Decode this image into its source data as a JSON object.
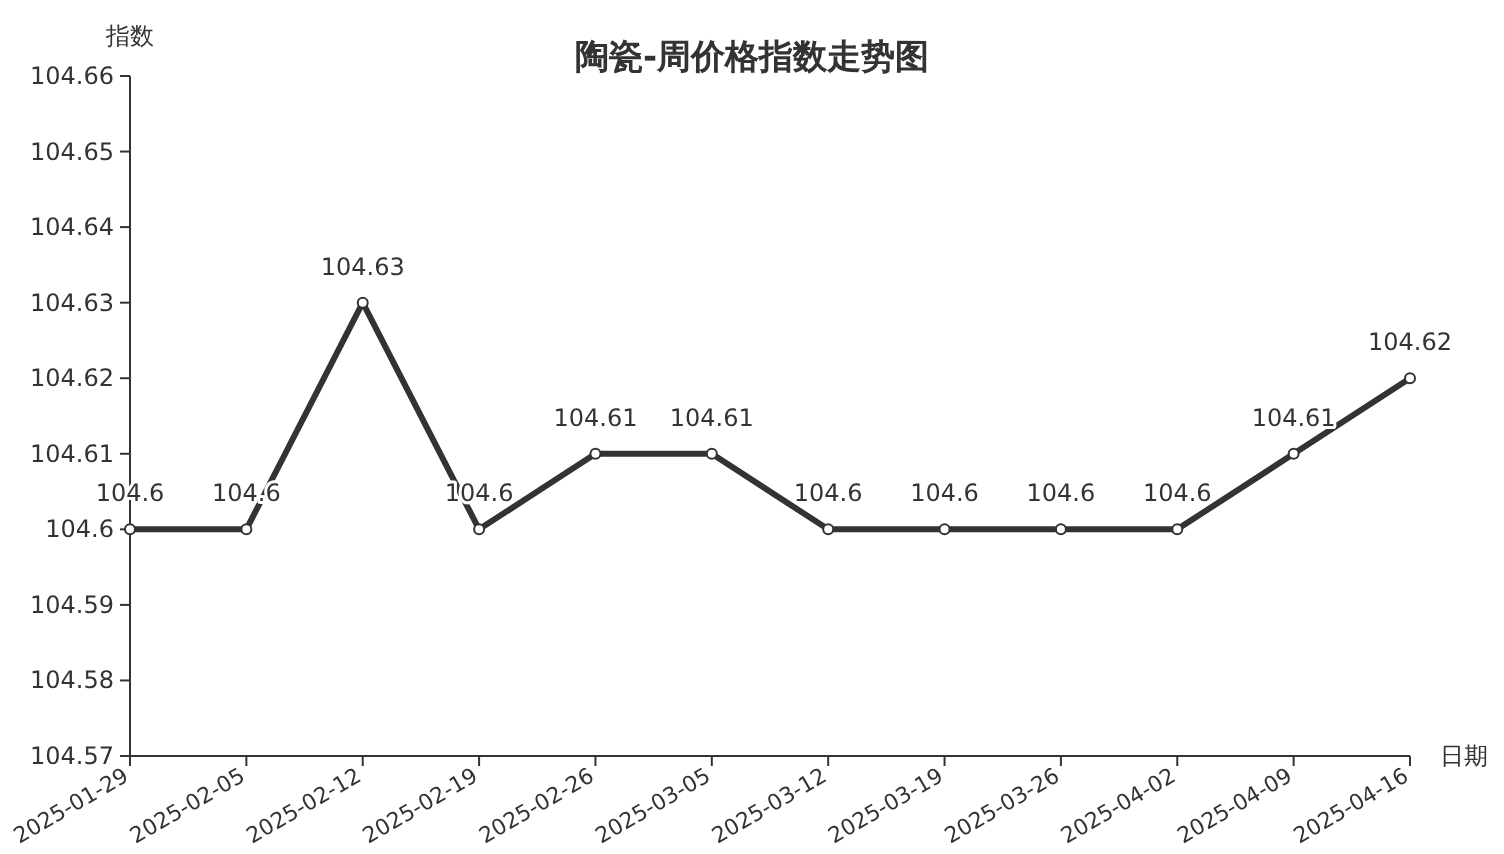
{
  "chart_data": {
    "type": "line",
    "title": "陶瓷-周价格指数走势图",
    "xlabel": "日期",
    "ylabel": "指数",
    "categories": [
      "2025-01-29",
      "2025-02-05",
      "2025-02-12",
      "2025-02-19",
      "2025-02-26",
      "2025-03-05",
      "2025-03-12",
      "2025-03-19",
      "2025-03-26",
      "2025-04-02",
      "2025-04-09",
      "2025-04-16"
    ],
    "series": [
      {
        "color": "#333333",
        "values": [
          104.6,
          104.6,
          104.63,
          104.6,
          104.61,
          104.61,
          104.6,
          104.6,
          104.6,
          104.6,
          104.61,
          104.62
        ]
      }
    ],
    "ylim": [
      104.57,
      104.66
    ],
    "yticks": [
      104.57,
      104.58,
      104.59,
      104.6,
      104.61,
      104.62,
      104.63,
      104.64,
      104.65,
      104.66
    ],
    "data_labels": true,
    "marker": "circle",
    "line_style": "solid",
    "grid": false
  }
}
